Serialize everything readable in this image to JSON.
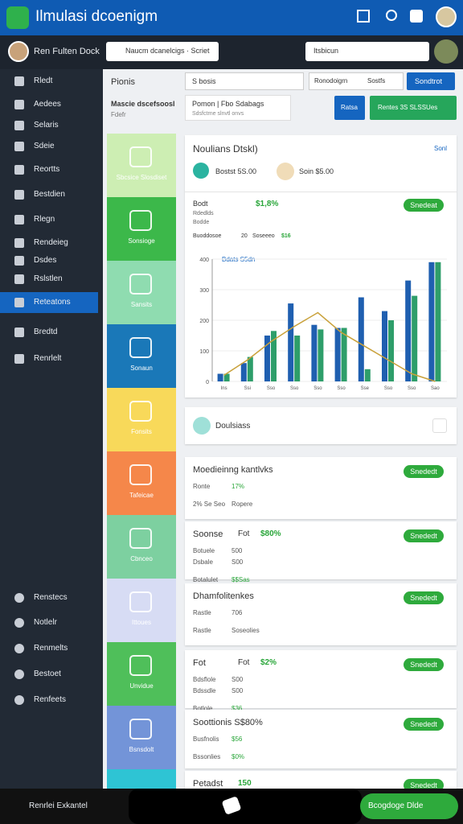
{
  "app": {
    "title": "Ilmulasi dcoenigm"
  },
  "user": {
    "name": "Ren Fulten Dock"
  },
  "search": {
    "main": "Naucm dcanelcigs · Scriet",
    "right": "Itsbicun"
  },
  "sidebar": {
    "items": [
      "Rledt",
      "Aedees",
      "Selaris",
      "Sdeie",
      "Reortts",
      "Bestdien",
      "Rlegn",
      "Rendeieg",
      "Dsdes",
      "Rslstlen",
      "Reteatons",
      "Bredtd",
      "Renrlelt"
    ],
    "active": 10,
    "bottom_items": [
      "Renstecs",
      "Notlelr",
      "Renmelts",
      "Bestoet",
      "Renfeets"
    ],
    "footer": "Renrlei Exkantel"
  },
  "filters": {
    "heading": "Pionis",
    "select1": "S bosis",
    "select2_label": "Ronodoigrn",
    "select2": "Sostfs",
    "button": "Sondtrot"
  },
  "subheader": {
    "title": "Mascie dscefsoosl",
    "subtitle": "Fdefr",
    "box_title": "Pomon | Fbo Sdabags",
    "box_text": "Sdsfctrne slnvtl onvs",
    "button1": "Ratsa",
    "button2": "Rentes 3S SLSSUes"
  },
  "tiles": [
    "Sbcsice Slosdiset",
    "Sonsioge",
    "Sansits",
    "Sonaun",
    "Fonsits",
    "Tafeicae",
    "Cbnceo",
    "Ittoues",
    "Unvidue",
    "Bsnsdolt"
  ],
  "overview": {
    "title": "Noulians Dtskl)",
    "link": "Sonl",
    "stat1": "Bostst 5S.00",
    "stat2": "Soin $5.00",
    "row_title": "Bodt",
    "row_value": "$1,8%",
    "row_button": "Snedeat",
    "row_lines": [
      "Rdedlds",
      "Bodde"
    ],
    "row_foot": [
      "Buoddosoe",
      "20",
      "Soseeeo",
      "$16"
    ],
    "chart_title": "Bdats S5dn"
  },
  "chart": {
    "type": "bar",
    "categories": [
      "Ins",
      "Ssi",
      "Sso",
      "Sso",
      "Sso",
      "Sso",
      "Sse",
      "Sso",
      "Sso",
      "Sao"
    ],
    "series": [
      {
        "name": "Blue",
        "color": "#1f5fb0",
        "values": [
          25,
          60,
          150,
          255,
          185,
          175,
          275,
          230,
          330,
          390
        ]
      },
      {
        "name": "Green",
        "color": "#2e9e6a",
        "values": [
          25,
          80,
          165,
          150,
          170,
          175,
          40,
          200,
          280,
          390
        ]
      },
      {
        "name": "Trend",
        "color": "#c9a13a",
        "values": [
          20,
          70,
          130,
          180,
          225,
          160,
          115,
          70,
          25,
          0
        ]
      }
    ],
    "ylim": [
      0,
      400
    ],
    "yticks": [
      0,
      100,
      200,
      300,
      400
    ]
  },
  "section": {
    "title": "Doulsiass"
  },
  "cards": [
    {
      "title": "Moedieinng kantlvks",
      "lines": [
        [
          "Ronte",
          "17%"
        ],
        [
          "2% Se Seo",
          "Ropere"
        ]
      ],
      "button": "Snededt"
    },
    {
      "title": "Soonse",
      "tag": "Fot",
      "value": "$80%",
      "lines": [
        [
          "Botuele",
          "500"
        ],
        [
          "Dsbale",
          "S00"
        ],
        [
          "Botalulet",
          "$$Sas"
        ]
      ],
      "button": "Snededt"
    },
    {
      "title": "Dhamfolitenkes",
      "lines": [
        [
          "Rastle",
          "706"
        ],
        [
          "Rastle",
          "Soseolies"
        ]
      ],
      "button": "Snededt"
    },
    {
      "title": "Fot",
      "tag": "Fot",
      "value": "$2%",
      "lines": [
        [
          "Bdsflole",
          "S00"
        ],
        [
          "Bdssdle",
          "S00"
        ],
        [
          "Botlole",
          "$36"
        ]
      ],
      "button": "Snededt"
    },
    {
      "title": "Soottionis S$80%",
      "lines": [
        [
          "Busfnolis",
          "$56"
        ],
        [
          "Bssonlies",
          "$0%"
        ]
      ],
      "button": "Snededt"
    },
    {
      "title": "Petadst",
      "tag": "150",
      "lines": [],
      "button": "Snededt"
    }
  ],
  "bottom": {
    "button": "Bcogdoge Dlde"
  }
}
